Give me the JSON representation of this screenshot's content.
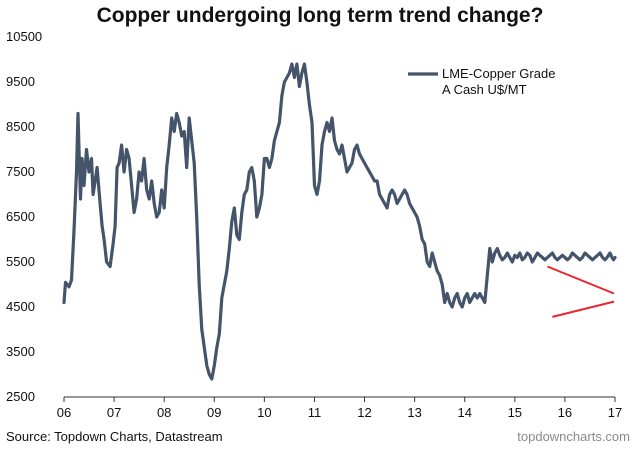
{
  "header": {
    "title": "Copper undergoing long term trend change?"
  },
  "footer": {
    "source": "Source: Topdown Charts, Datastream",
    "site": "topdowncharts.com"
  },
  "colors": {
    "series": "#44546a",
    "trendlines": "#e8262b",
    "text": "#111111"
  },
  "chart_data": {
    "type": "line",
    "title": "Copper undergoing long term trend change?",
    "xlabel": "",
    "ylabel": "",
    "xlim": [
      2006.0,
      2017.0
    ],
    "ylim": [
      2500,
      10500
    ],
    "x_ticks": [
      {
        "value": 2006,
        "label": "06"
      },
      {
        "value": 2007,
        "label": "07"
      },
      {
        "value": 2008,
        "label": "08"
      },
      {
        "value": 2009,
        "label": "09"
      },
      {
        "value": 2010,
        "label": "10"
      },
      {
        "value": 2011,
        "label": "11"
      },
      {
        "value": 2012,
        "label": "12"
      },
      {
        "value": 2013,
        "label": "13"
      },
      {
        "value": 2014,
        "label": "14"
      },
      {
        "value": 2015,
        "label": "15"
      },
      {
        "value": 2016,
        "label": "16"
      },
      {
        "value": 2017,
        "label": "17"
      }
    ],
    "y_ticks": [
      2500,
      3500,
      4500,
      5500,
      6500,
      7500,
      8500,
      9500,
      10500
    ],
    "legend": {
      "position": "top-right",
      "lines": [
        "LME-Copper Grade",
        "A Cash U$/MT"
      ]
    },
    "series": [
      {
        "name": "LME-Copper Grade A Cash U$/MT",
        "x": [
          2006.0,
          2006.03,
          2006.1,
          2006.15,
          2006.2,
          2006.25,
          2006.28,
          2006.3,
          2006.33,
          2006.36,
          2006.4,
          2006.45,
          2006.5,
          2006.55,
          2006.58,
          2006.62,
          2006.66,
          2006.72,
          2006.76,
          2006.8,
          2006.85,
          2006.92,
          2006.98,
          2007.02,
          2007.06,
          2007.1,
          2007.15,
          2007.2,
          2007.25,
          2007.3,
          2007.35,
          2007.4,
          2007.45,
          2007.5,
          2007.55,
          2007.6,
          2007.65,
          2007.7,
          2007.75,
          2007.8,
          2007.85,
          2007.9,
          2007.95,
          2008.0,
          2008.05,
          2008.1,
          2008.15,
          2008.2,
          2008.25,
          2008.3,
          2008.35,
          2008.4,
          2008.45,
          2008.5,
          2008.55,
          2008.6,
          2008.65,
          2008.7,
          2008.75,
          2008.8,
          2008.85,
          2008.9,
          2008.95,
          2009.0,
          2009.05,
          2009.1,
          2009.15,
          2009.2,
          2009.25,
          2009.3,
          2009.35,
          2009.4,
          2009.45,
          2009.5,
          2009.55,
          2009.6,
          2009.65,
          2009.7,
          2009.75,
          2009.8,
          2009.85,
          2009.9,
          2009.95,
          2010.0,
          2010.05,
          2010.1,
          2010.15,
          2010.2,
          2010.25,
          2010.3,
          2010.35,
          2010.4,
          2010.45,
          2010.5,
          2010.55,
          2010.6,
          2010.65,
          2010.7,
          2010.75,
          2010.8,
          2010.85,
          2010.9,
          2010.95,
          2011.0,
          2011.05,
          2011.1,
          2011.15,
          2011.2,
          2011.25,
          2011.3,
          2011.35,
          2011.4,
          2011.45,
          2011.5,
          2011.55,
          2011.6,
          2011.65,
          2011.7,
          2011.75,
          2011.8,
          2011.85,
          2011.9,
          2011.95,
          2012.0,
          2012.05,
          2012.1,
          2012.15,
          2012.2,
          2012.25,
          2012.3,
          2012.35,
          2012.4,
          2012.45,
          2012.5,
          2012.55,
          2012.6,
          2012.65,
          2012.7,
          2012.75,
          2012.8,
          2012.85,
          2012.9,
          2012.95,
          2013.0,
          2013.05,
          2013.1,
          2013.15,
          2013.2,
          2013.25,
          2013.3,
          2013.35,
          2013.4,
          2013.45,
          2013.5,
          2013.55,
          2013.6,
          2013.65,
          2013.7,
          2013.75,
          2013.8,
          2013.85,
          2013.9,
          2013.95,
          2014.0,
          2014.05,
          2014.1,
          2014.15,
          2014.2,
          2014.25,
          2014.3,
          2014.35,
          2014.4,
          2014.45,
          2014.5,
          2014.55,
          2014.6,
          2014.65,
          2014.7,
          2014.75,
          2014.8,
          2014.85,
          2014.9,
          2014.95,
          2015.0,
          2015.05,
          2015.1,
          2015.15,
          2015.2,
          2015.25,
          2015.3,
          2015.35,
          2015.4,
          2015.45,
          2015.5,
          2015.55,
          2015.6,
          2015.65,
          2015.7,
          2015.75,
          2015.8,
          2015.85,
          2015.9,
          2015.95,
          2016.0,
          2016.05,
          2016.1,
          2016.15,
          2016.2,
          2016.25,
          2016.3,
          2016.35,
          2016.4,
          2016.45,
          2016.5,
          2016.55,
          2016.6,
          2016.65,
          2016.7,
          2016.75,
          2016.8,
          2016.84,
          2016.87,
          2016.9,
          2016.94,
          2016.97,
          2017.0
        ],
        "y": [
          4600,
          5050,
          4950,
          5100,
          6200,
          7500,
          8800,
          8000,
          6900,
          7800,
          7200,
          8000,
          7500,
          7800,
          7000,
          7300,
          7600,
          6800,
          6300,
          6000,
          5500,
          5400,
          5900,
          6300,
          7600,
          7700,
          8100,
          7500,
          8000,
          7800,
          7200,
          6600,
          6900,
          7500,
          7300,
          7800,
          7100,
          6900,
          7300,
          6800,
          6500,
          6600,
          7100,
          6700,
          7600,
          8100,
          8700,
          8400,
          8800,
          8600,
          8300,
          8400,
          7600,
          8700,
          8200,
          7700,
          6500,
          5000,
          4000,
          3600,
          3200,
          3000,
          2900,
          3200,
          3600,
          3900,
          4700,
          5000,
          5300,
          5800,
          6400,
          6700,
          6100,
          6000,
          6600,
          7000,
          7100,
          7500,
          7600,
          7300,
          6500,
          6700,
          7000,
          7800,
          7800,
          7600,
          7800,
          8200,
          8400,
          8600,
          9200,
          9500,
          9600,
          9700,
          9900,
          9600,
          9900,
          9400,
          9700,
          9900,
          9500,
          9000,
          8600,
          7200,
          7000,
          7300,
          8100,
          8400,
          8600,
          8400,
          8700,
          8200,
          8000,
          7900,
          8100,
          7800,
          7500,
          7600,
          7700,
          8000,
          8100,
          7900,
          7800,
          7700,
          7600,
          7500,
          7400,
          7300,
          7300,
          7000,
          6900,
          6800,
          6700,
          7000,
          7100,
          7000,
          6800,
          6900,
          7000,
          7100,
          7000,
          6800,
          6700,
          6600,
          6500,
          6300,
          6000,
          5900,
          5500,
          5400,
          5700,
          5500,
          5300,
          5200,
          5000,
          4600,
          4800,
          4600,
          4500,
          4700,
          4800,
          4600,
          4500,
          4700,
          4800,
          4600,
          4700,
          4800,
          4700,
          4800,
          4700,
          4600,
          5200,
          5800,
          5500,
          5700,
          5800,
          5650,
          5550,
          5600,
          5700,
          5600,
          5500,
          5650,
          5600,
          5700,
          5550,
          5600,
          5700,
          5650,
          5500,
          5600,
          5700,
          5650,
          5600,
          5550,
          5600,
          5650,
          5700,
          5600,
          5550,
          5600,
          5650,
          5600,
          5550,
          5600,
          5700,
          5650,
          5600,
          5550,
          5600,
          5700,
          5650,
          5600,
          5550,
          5600,
          5650,
          5700,
          5600,
          5550,
          5600,
          5650,
          5700,
          5600,
          5550,
          5600
        ]
      }
    ],
    "annotations": [
      {
        "type": "trendline",
        "x1": 2015.65,
        "y1": 5400,
        "x2": 2016.98,
        "y2": 4800
      },
      {
        "type": "trendline",
        "x1": 2015.75,
        "y1": 4280,
        "x2": 2016.98,
        "y2": 4620
      }
    ]
  }
}
